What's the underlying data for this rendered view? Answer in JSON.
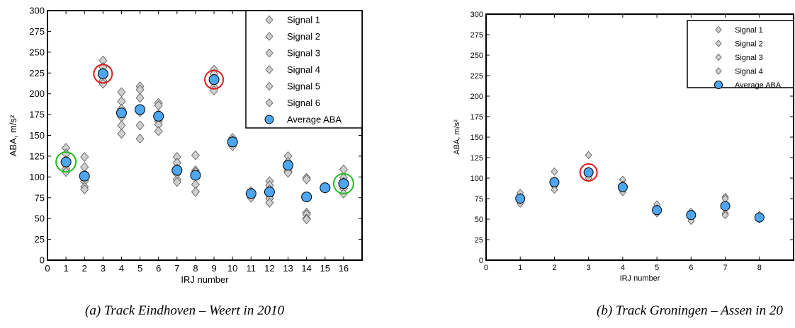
{
  "chart_data": [
    {
      "type": "scatter",
      "caption": "(a) Track Eindhoven – Weert in 2010",
      "xlabel": "IRJ number",
      "ylabel": "ABA, m/s²",
      "xlim": [
        0,
        17
      ],
      "ylim": [
        0,
        300
      ],
      "xticks": [
        "0",
        "1",
        "2",
        "3",
        "4",
        "5",
        "6",
        "7",
        "8",
        "9",
        "10",
        "11",
        "12",
        "13",
        "14",
        "15",
        "16"
      ],
      "yticks": [
        "0",
        "25",
        "50",
        "75",
        "100",
        "125",
        "150",
        "175",
        "200",
        "225",
        "250",
        "275",
        "300"
      ],
      "legend_position": "top-right",
      "legend": [
        "Signal 1",
        "Signal 2",
        "Signal 3",
        "Signal 4",
        "Signal 5",
        "Signal 6",
        "Average ABA"
      ],
      "signals": [
        {
          "x": 1,
          "values": [
            135,
            128,
            120,
            115,
            110,
            106
          ]
        },
        {
          "x": 2,
          "values": [
            124,
            112,
            102,
            95,
            88,
            85
          ]
        },
        {
          "x": 3,
          "values": [
            240,
            232,
            226,
            222,
            216,
            212
          ]
        },
        {
          "x": 4,
          "values": [
            202,
            191,
            182,
            172,
            162,
            152
          ]
        },
        {
          "x": 5,
          "values": [
            209,
            205,
            195,
            178,
            162,
            146
          ]
        },
        {
          "x": 6,
          "values": [
            189,
            186,
            175,
            167,
            163,
            155
          ]
        },
        {
          "x": 7,
          "values": [
            124,
            117,
            110,
            104,
            97,
            94
          ]
        },
        {
          "x": 8,
          "values": [
            126,
            108,
            106,
            101,
            91,
            82
          ]
        },
        {
          "x": 9,
          "values": [
            229,
            224,
            218,
            214,
            208,
            204
          ]
        },
        {
          "x": 10,
          "values": [
            147,
            144,
            142,
            141,
            139,
            137
          ]
        },
        {
          "x": 11,
          "values": [
            83,
            81,
            80,
            79,
            77,
            75
          ]
        },
        {
          "x": 12,
          "values": [
            95,
            90,
            85,
            78,
            74,
            69
          ]
        },
        {
          "x": 13,
          "values": [
            125,
            118,
            113,
            110,
            107,
            105
          ]
        },
        {
          "x": 14,
          "values": [
            99,
            97,
            57,
            55,
            50,
            49
          ]
        },
        {
          "x": 15,
          "values": [
            88,
            87,
            87,
            86,
            86,
            86
          ]
        },
        {
          "x": 16,
          "values": [
            109,
            99,
            94,
            90,
            86,
            80
          ]
        }
      ],
      "average": [
        118,
        101,
        224,
        177,
        181,
        173,
        108,
        102,
        217,
        142,
        80,
        82,
        114,
        76,
        87,
        92
      ],
      "highlight_red": [
        3,
        9
      ],
      "highlight_green": [
        1,
        16
      ]
    },
    {
      "type": "scatter",
      "caption": "(b) Track Groningen – Assen in 20",
      "xlabel": "IRJ number",
      "ylabel": "ABA, m/s²",
      "xlim": [
        0,
        9
      ],
      "ylim": [
        0,
        300
      ],
      "xticks": [
        "0",
        "1",
        "2",
        "3",
        "4",
        "5",
        "6",
        "7",
        "8"
      ],
      "yticks": [
        "0",
        "25",
        "50",
        "75",
        "100",
        "125",
        "150",
        "175",
        "200",
        "225",
        "250",
        "275",
        "300"
      ],
      "legend_position": "top-right",
      "legend": [
        "Signal 1",
        "Signal 2",
        "Signal 3",
        "Signal 4",
        "Average ABA"
      ],
      "signals": [
        {
          "x": 1,
          "values": [
            82,
            77,
            73,
            69
          ]
        },
        {
          "x": 2,
          "values": [
            108,
            97,
            90,
            86
          ]
        },
        {
          "x": 3,
          "values": [
            128,
            109,
            104,
            100
          ]
        },
        {
          "x": 4,
          "values": [
            98,
            92,
            87,
            83
          ]
        },
        {
          "x": 5,
          "values": [
            68,
            63,
            59,
            57
          ]
        },
        {
          "x": 6,
          "values": [
            59,
            56,
            51,
            48
          ]
        },
        {
          "x": 7,
          "values": [
            77,
            75,
            57,
            55
          ]
        },
        {
          "x": 8,
          "values": [
            55,
            53,
            51,
            50
          ]
        }
      ],
      "average": [
        75,
        95,
        107,
        89,
        61,
        55,
        66,
        52
      ],
      "highlight_red": [
        3
      ],
      "highlight_green": []
    }
  ],
  "colors": {
    "average_fill": "#4da6ef",
    "marker_fill": "#cfcfcf",
    "red_circle": "#e01b1b",
    "green_circle": "#1fbf1f"
  }
}
